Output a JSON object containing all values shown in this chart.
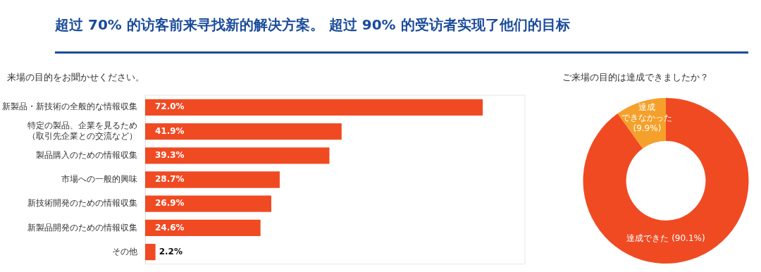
{
  "chart_data": [
    {
      "type": "bar",
      "title": "超过 70% 的访客前来寻找新的解决方案。 超过 90% 的受访者实现了他们的目标",
      "subtitle": "来場の目的をお聞かせください。",
      "orientation": "horizontal",
      "categories": [
        "新製品・新技術の全般的な情報収集",
        "特定の製品、企業を見るため（取引先企業との交流など）",
        "製品購入のための情報収集",
        "市場への一般的興味",
        "新技術開発のための情報収集",
        "新製品開発のための情報収集",
        "その他"
      ],
      "values": [
        72.0,
        41.9,
        39.3,
        28.7,
        26.9,
        24.6,
        2.2
      ],
      "color": "#f04a23",
      "xlim": [
        0,
        81
      ],
      "tick_labels": "y",
      "value_labels": [
        "72.0%",
        "41.9%",
        "39.3%",
        "28.7%",
        "26.9%",
        "24.6%",
        "2.2%"
      ]
    },
    {
      "type": "donut",
      "title": "ご来場の目的は達成できましたか？",
      "categories": [
        "達成できた",
        "達成できなかった"
      ],
      "values": [
        90.1,
        9.9
      ],
      "colors": [
        "#f04a23",
        "#f5a02a"
      ],
      "value_labels": [
        "(90.1%)",
        "(9.9%)"
      ]
    }
  ]
}
